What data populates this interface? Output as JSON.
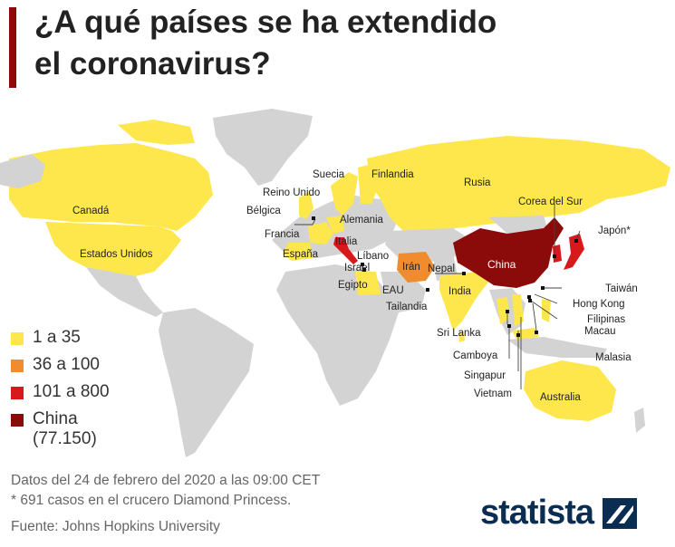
{
  "title": {
    "line1": "¿A qué países se ha extendido",
    "line2": "el coronavirus?"
  },
  "colors": {
    "range_1_35": "#fde74c",
    "range_36_100": "#f08c2e",
    "range_101_800": "#d7191c",
    "china": "#8b0a0a",
    "no_data": "#d3d3d3",
    "accent_bar": "#8b0a0a"
  },
  "legend": [
    {
      "label": "1 a 35",
      "color": "#fde74c"
    },
    {
      "label": "36 a 100",
      "color": "#f08c2e"
    },
    {
      "label": "101 a 800",
      "color": "#d7191c"
    },
    {
      "label": "China",
      "sublabel": "(77.150)",
      "color": "#8b0a0a"
    }
  ],
  "countries": {
    "canada": "Canadá",
    "usa": "Estados Unidos",
    "sweden": "Suecia",
    "finland": "Finlandia",
    "russia": "Rusia",
    "uk": "Reino Unido",
    "belgium": "Bélgica",
    "germany": "Alemania",
    "france": "Francia",
    "italy": "Italia",
    "spain": "España",
    "lebanon": "Líbano",
    "israel": "Israel",
    "egypt": "Egipto",
    "iran": "Irán",
    "uae": "EAU",
    "nepal": "Nepal",
    "india": "India",
    "china": "China",
    "south_korea": "Corea del Sur",
    "japan": "Japón*",
    "taiwan": "Taiwán",
    "hong_kong": "Hong Kong",
    "philippines": "Filipinas",
    "macau": "Macau",
    "malaysia": "Malasia",
    "thailand": "Tailandia",
    "sri_lanka": "Sri Lanka",
    "cambodia": "Camboya",
    "singapore": "Singapur",
    "vietnam": "Vietnam",
    "australia": "Australia"
  },
  "footer": {
    "date_note": "Datos del 24 de febrero del 2020 a las 09:00 CET",
    "cruise_note": "* 691 casos en el crucero Diamond Princess.",
    "source": "Fuente: Johns Hopkins University"
  },
  "brand": {
    "name": "statista",
    "logo_icon": "statista-logo-icon"
  }
}
